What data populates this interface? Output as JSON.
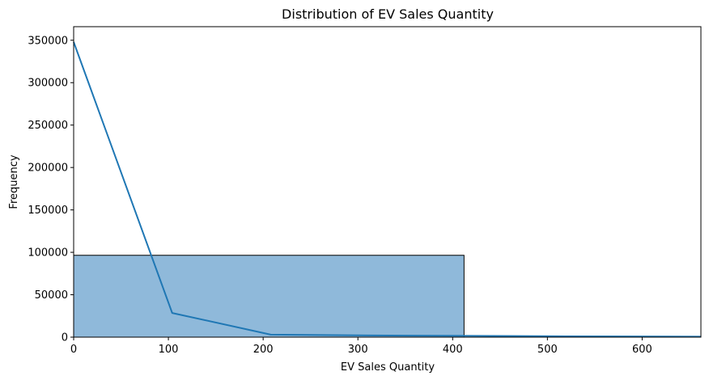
{
  "chart_data": {
    "type": "bar",
    "title": "Distribution of EV Sales Quantity",
    "xlabel": "EV Sales Quantity",
    "ylabel": "Frequency",
    "xlim": [
      0,
      662
    ],
    "ylim": [
      0,
      366000
    ],
    "xticks": [
      0,
      100,
      200,
      300,
      400,
      500,
      600
    ],
    "yticks": [
      0,
      50000,
      100000,
      150000,
      200000,
      250000,
      300000,
      350000
    ],
    "bins": [
      {
        "x0": 0,
        "x1": 412,
        "count": 96500
      }
    ],
    "kde_line": {
      "x": [
        0,
        104,
        208,
        312,
        416,
        520,
        624,
        662
      ],
      "y": [
        348000,
        28500,
        3000,
        2000,
        1500,
        1000,
        700,
        600
      ]
    },
    "colors": {
      "bar_fill": "#8fb9da",
      "bar_edge": "#000000",
      "line": "#1f77b4"
    },
    "grid": false
  }
}
